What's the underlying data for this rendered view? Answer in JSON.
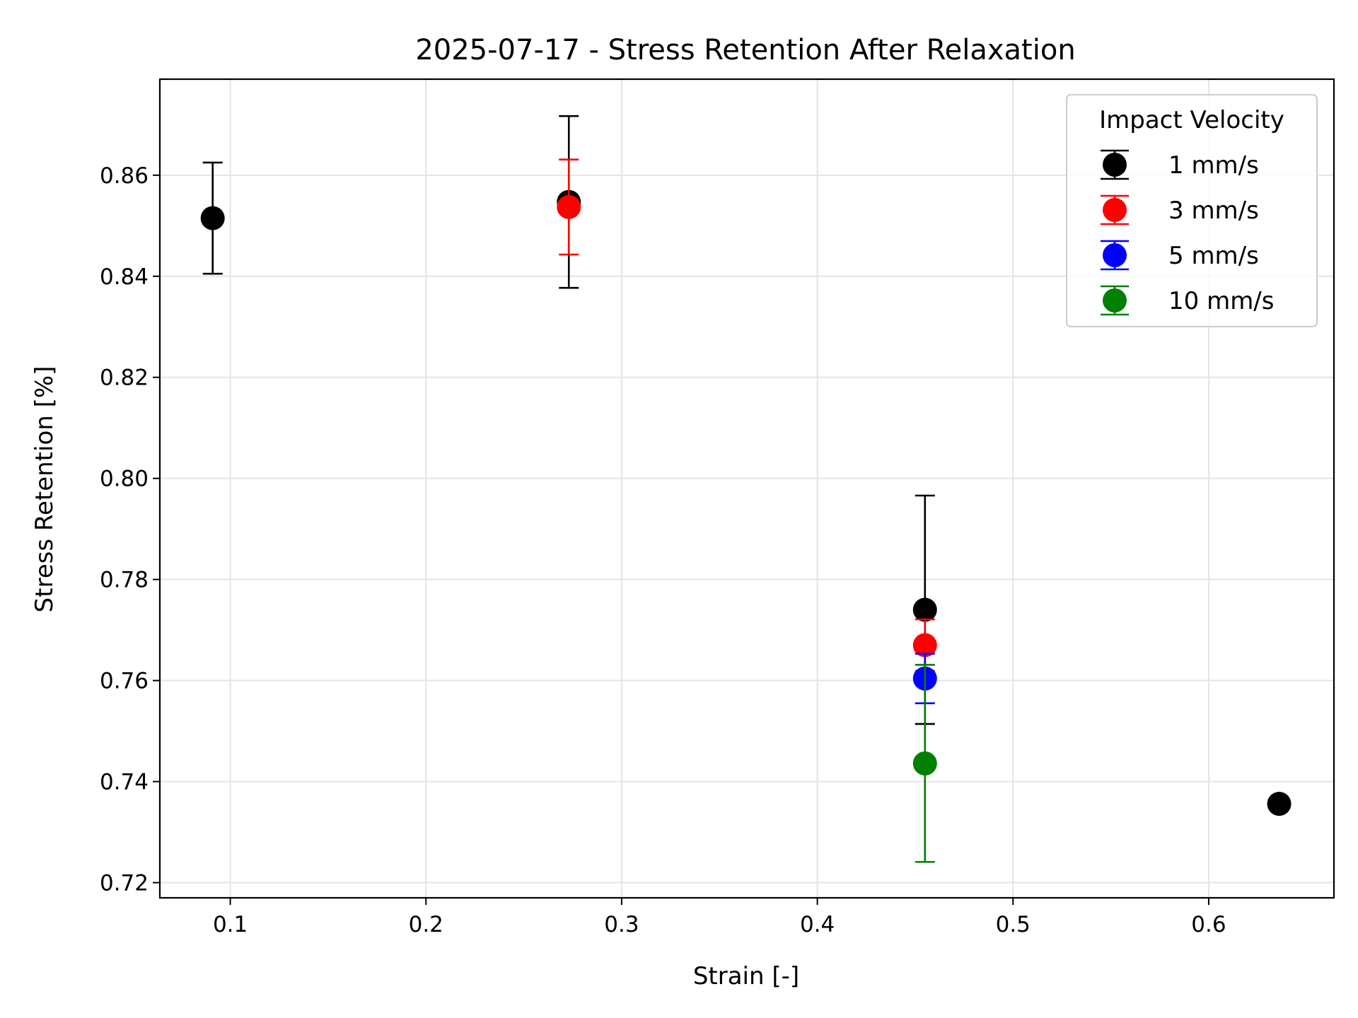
{
  "chart_data": {
    "type": "scatter",
    "title": "2025-07-17 - Stress Retention After Relaxation",
    "xlabel": "Strain [-]",
    "ylabel": "Stress Retention [%]",
    "xlim": [
      0.064,
      0.664
    ],
    "ylim": [
      0.717,
      0.879
    ],
    "xticks": [
      0.1,
      0.2,
      0.3,
      0.4,
      0.5,
      0.6
    ],
    "xtick_labels": [
      "0.1",
      "0.2",
      "0.3",
      "0.4",
      "0.5",
      "0.6"
    ],
    "yticks": [
      0.72,
      0.74,
      0.76,
      0.78,
      0.8,
      0.82,
      0.84,
      0.86
    ],
    "ytick_labels": [
      "0.72",
      "0.74",
      "0.76",
      "0.78",
      "0.80",
      "0.82",
      "0.84",
      "0.86"
    ],
    "grid": true,
    "legend": {
      "title": "Impact Velocity",
      "position": "top-right"
    },
    "series": [
      {
        "name": "1 mm/s",
        "color": "#000000",
        "points": [
          {
            "x": 0.091,
            "y": 0.8515,
            "err": 0.011
          },
          {
            "x": 0.273,
            "y": 0.8547,
            "err": 0.017
          },
          {
            "x": 0.455,
            "y": 0.774,
            "err": 0.0226
          },
          {
            "x": 0.636,
            "y": 0.7356,
            "err": 0
          }
        ]
      },
      {
        "name": "3 mm/s",
        "color": "#ff0000",
        "points": [
          {
            "x": 0.273,
            "y": 0.8537,
            "err": 0.0094
          },
          {
            "x": 0.455,
            "y": 0.767,
            "err": 0.0051
          }
        ]
      },
      {
        "name": "5 mm/s",
        "color": "#0000ff",
        "points": [
          {
            "x": 0.455,
            "y": 0.7604,
            "err": 0.0049
          }
        ]
      },
      {
        "name": "10 mm/s",
        "color": "#008000",
        "points": [
          {
            "x": 0.455,
            "y": 0.7436,
            "err": 0.0195
          }
        ]
      }
    ]
  }
}
